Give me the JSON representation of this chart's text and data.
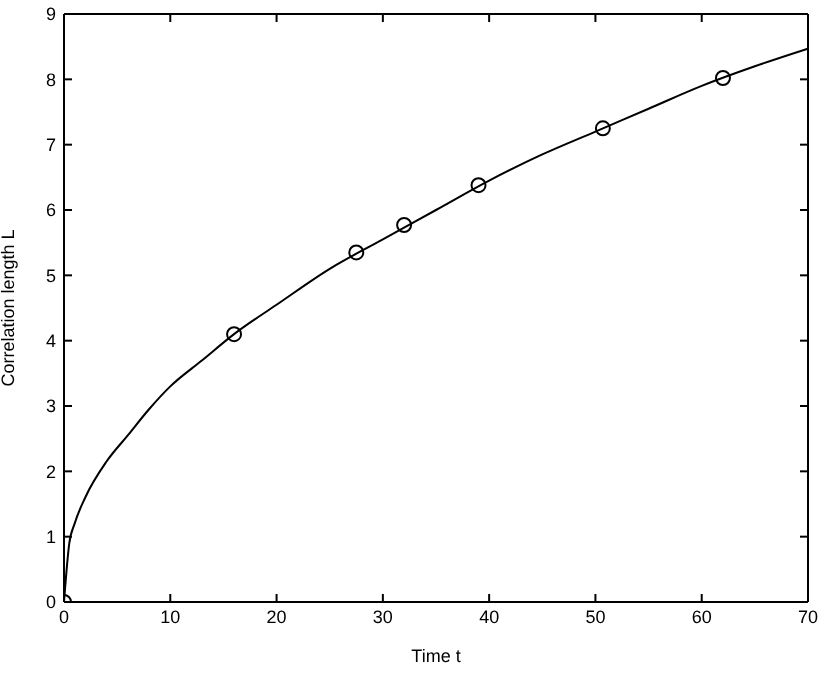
{
  "chart_data": {
    "type": "line",
    "xlabel": "Time t",
    "ylabel": "Correlation length L",
    "xlim": [
      0,
      70
    ],
    "xticks": [
      0,
      10,
      20,
      30,
      40,
      50,
      60,
      70
    ],
    "ylim": [
      0,
      9
    ],
    "yticks": [
      0,
      1,
      2,
      3,
      4,
      5,
      6,
      7,
      8,
      9
    ],
    "grid": false,
    "series": [
      {
        "type": "line",
        "color": "#000000",
        "marker": "none",
        "x": [
          0,
          0.5,
          1,
          2,
          4,
          6,
          8,
          10,
          13,
          16,
          20,
          25,
          30,
          35,
          40,
          45,
          50,
          55,
          60,
          65,
          70
        ],
        "values": [
          0,
          0.9,
          1.2,
          1.6,
          2.15,
          2.55,
          2.95,
          3.3,
          3.7,
          4.1,
          4.55,
          5.1,
          5.55,
          6.0,
          6.45,
          6.85,
          7.2,
          7.55,
          7.9,
          8.2,
          8.47
        ]
      },
      {
        "type": "scatter",
        "color": "#000000",
        "marker": "circle",
        "x": [
          0,
          16,
          27.5,
          32,
          39,
          50.7,
          62
        ],
        "values": [
          0,
          4.1,
          5.35,
          5.77,
          6.38,
          7.25,
          8.02
        ]
      }
    ]
  }
}
